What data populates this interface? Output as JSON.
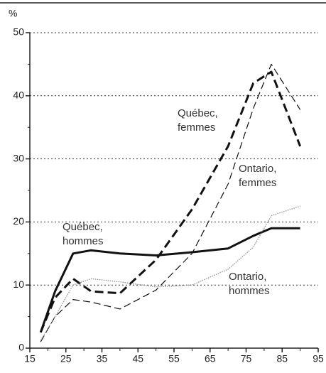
{
  "chart_data": {
    "type": "line",
    "y_label": "%",
    "x": [
      18,
      22,
      27,
      32,
      40,
      50,
      60,
      70,
      77,
      82,
      90
    ],
    "series": [
      {
        "name": "Québec, hommes",
        "color": "#111111",
        "style": "solid",
        "linewidth": 3,
        "values": [
          2.5,
          9,
          15,
          15.5,
          15,
          14.7,
          15.2,
          15.8,
          17.8,
          19,
          19
        ]
      },
      {
        "name": "Québec, femmes",
        "color": "#111111",
        "style": "dashed",
        "linewidth": 3,
        "values": [
          2.5,
          8,
          11,
          9,
          8.7,
          14,
          22,
          32,
          42,
          43.8,
          32
        ]
      },
      {
        "name": "Ontario, femmes",
        "color": "#111111",
        "style": "dashed",
        "linewidth": 1.2,
        "values": [
          1,
          5,
          7.7,
          7.3,
          6.2,
          9.2,
          15,
          26,
          38,
          45,
          37.8
        ]
      },
      {
        "name": "Ontario, hommes",
        "color": "#888888",
        "style": "dotted",
        "linewidth": 1.2,
        "values": [
          1.2,
          5,
          10,
          11,
          10.5,
          9.7,
          10,
          12.5,
          16,
          21,
          22.5
        ]
      }
    ],
    "xlim": [
      15,
      95
    ],
    "xticks": [
      15,
      25,
      35,
      45,
      55,
      65,
      75,
      85,
      95
    ],
    "ylim": [
      0,
      50
    ],
    "yticks": [
      0,
      10,
      20,
      30,
      40,
      50
    ],
    "grid": true
  }
}
